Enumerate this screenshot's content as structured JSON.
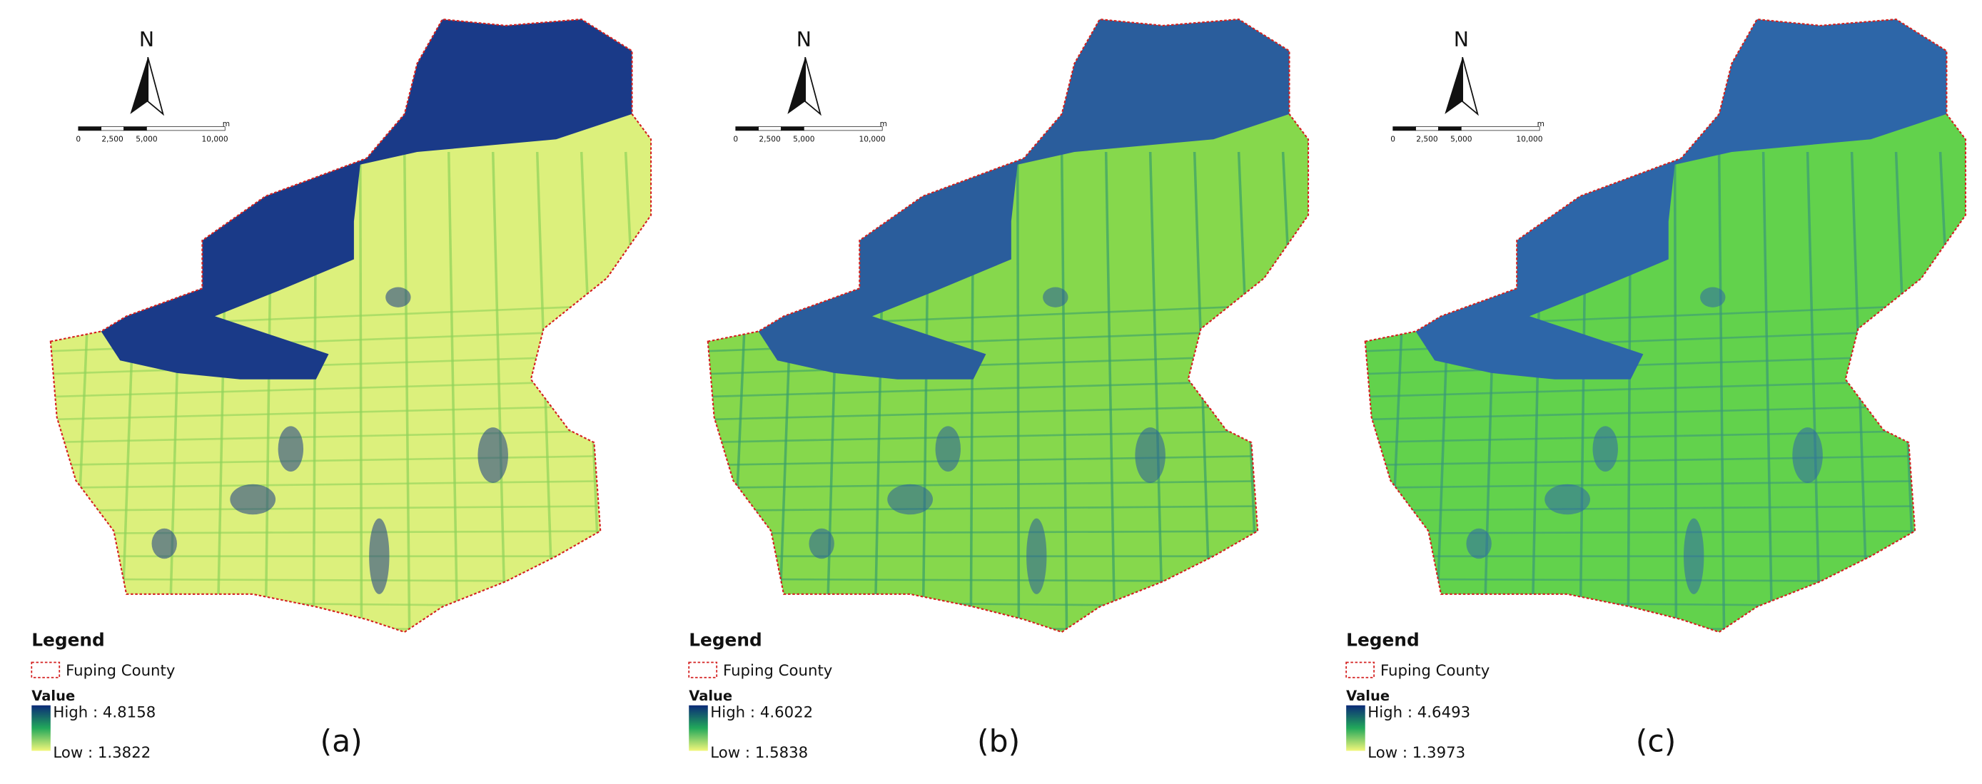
{
  "panels": [
    {
      "north": "N",
      "scale_labels": [
        "0",
        "2,500",
        "5,000",
        "10,000"
      ],
      "scale_unit": "m",
      "legend_title": "Legend",
      "boundary_label": "Fuping County",
      "value_title": "Value",
      "high_label": "High : 4.8158",
      "low_label": "Low : 1.3822",
      "label": "(a)"
    },
    {
      "north": "N",
      "scale_labels": [
        "0",
        "2,500",
        "5,000",
        "10,000"
      ],
      "scale_unit": "m",
      "legend_title": "Legend",
      "boundary_label": "Fuping County",
      "value_title": "Value",
      "high_label": "High : 4.6022",
      "low_label": "Low : 1.5838",
      "label": "(b)"
    },
    {
      "north": "N",
      "scale_labels": [
        "0",
        "2,500",
        "5,000",
        "10,000"
      ],
      "scale_unit": "m",
      "legend_title": "Legend",
      "boundary_label": "Fuping County",
      "value_title": "Value",
      "high_label": "High : 4.6493",
      "low_label": "Low : 1.3973",
      "label": "(c)"
    }
  ]
}
